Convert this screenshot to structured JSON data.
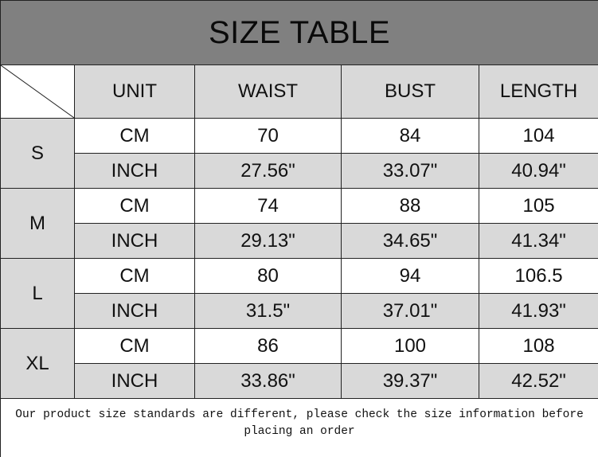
{
  "title": "SIZE TABLE",
  "headers": [
    "UNIT",
    "WAIST",
    "BUST",
    "LENGTH"
  ],
  "sizes": [
    {
      "size": "S",
      "rows": [
        [
          "CM",
          "70",
          "84",
          "104"
        ],
        [
          "INCH",
          "27.56\"",
          "33.07\"",
          "40.94\""
        ]
      ]
    },
    {
      "size": "M",
      "rows": [
        [
          "CM",
          "74",
          "88",
          "105"
        ],
        [
          "INCH",
          "29.13\"",
          "34.65\"",
          "41.34\""
        ]
      ]
    },
    {
      "size": "L",
      "rows": [
        [
          "CM",
          "80",
          "94",
          "106.5"
        ],
        [
          "INCH",
          "31.5\"",
          "37.01\"",
          "41.93\""
        ]
      ]
    },
    {
      "size": "XL",
      "rows": [
        [
          "CM",
          "86",
          "100",
          "108"
        ],
        [
          "INCH",
          "33.86\"",
          "39.37\"",
          "42.52\""
        ]
      ]
    }
  ],
  "footer_note": "Our product size standards are different, please check the size information before placing an order",
  "colors": {
    "title_bg": "#808080",
    "cell_gray": "#d9d9d9"
  }
}
